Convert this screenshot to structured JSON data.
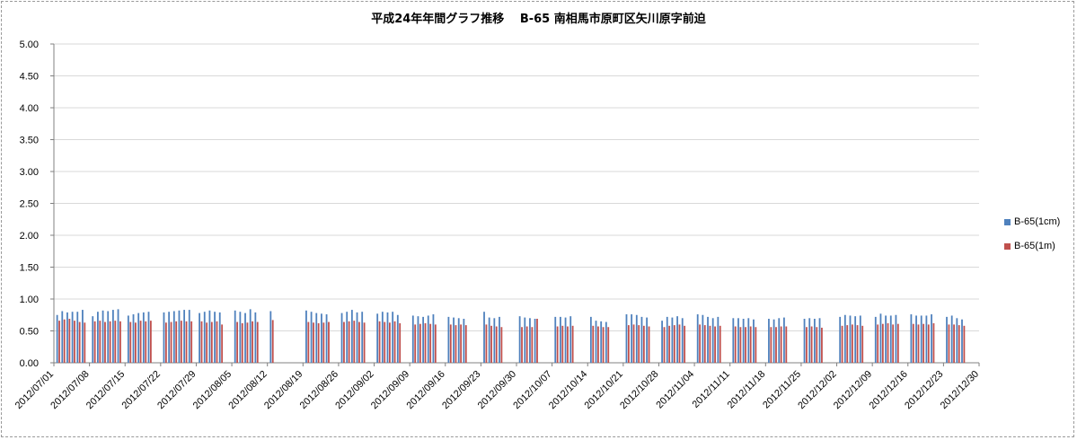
{
  "chart_data": {
    "type": "bar",
    "title": "平成24年年間グラフ推移　 B-65 南相馬市原町区矢川原字前迫",
    "xlabel": "",
    "ylabel": "",
    "ylim": [
      0,
      5
    ],
    "yticks": [
      "0.00",
      "0.50",
      "1.00",
      "1.50",
      "2.00",
      "2.50",
      "3.00",
      "3.50",
      "4.00",
      "4.50",
      "5.00"
    ],
    "xticks": [
      "2012/07/01",
      "2012/07/08",
      "2012/07/15",
      "2012/07/22",
      "2012/07/29",
      "2012/08/05",
      "2012/08/12",
      "2012/08/19",
      "2012/08/26",
      "2012/09/02",
      "2012/09/09",
      "2012/09/16",
      "2012/09/23",
      "2012/09/30",
      "2012/10/07",
      "2012/10/14",
      "2012/10/21",
      "2012/10/28",
      "2012/11/04",
      "2012/11/11",
      "2012/11/18",
      "2012/11/25",
      "2012/12/02",
      "2012/12/09",
      "2012/12/16",
      "2012/12/23",
      "2012/12/30"
    ],
    "legend_position": "right",
    "grid": true,
    "series": [
      {
        "name": "B-65(1cm)",
        "color": "#4f81bd",
        "values": [
          [
            0.75,
            0.81,
            0.79,
            0.8,
            0.8,
            0.83
          ],
          [
            0.73,
            0.8,
            0.82,
            0.81,
            0.83,
            0.84
          ],
          [
            0.74,
            0.76,
            0.78,
            0.79,
            0.8
          ],
          [
            0.79,
            0.8,
            0.81,
            0.82,
            0.83,
            0.83
          ],
          [
            0.78,
            0.8,
            0.82,
            0.8,
            0.79
          ],
          [
            0.82,
            0.8,
            0.78,
            0.84,
            0.79
          ],
          [
            0.81
          ],
          [
            0.82,
            0.8,
            0.78,
            0.77,
            0.76
          ],
          [
            0.78,
            0.8,
            0.83,
            0.79,
            0.8
          ],
          [
            0.77,
            0.8,
            0.79,
            0.8,
            0.75
          ],
          [
            0.74,
            0.73,
            0.72,
            0.74,
            0.76
          ],
          [
            0.72,
            0.71,
            0.7,
            0.69
          ],
          [
            0.8,
            0.71,
            0.7,
            0.72
          ],
          [
            0.73,
            0.71,
            0.7,
            0.69
          ],
          [
            0.72,
            0.72,
            0.71,
            0.73
          ],
          [
            0.72,
            0.66,
            0.65,
            0.64
          ],
          [
            0.76,
            0.76,
            0.75,
            0.72,
            0.71
          ],
          [
            0.66,
            0.72,
            0.71,
            0.73,
            0.7
          ],
          [
            0.76,
            0.75,
            0.72,
            0.7,
            0.72
          ],
          [
            0.7,
            0.7,
            0.69,
            0.7,
            0.68
          ],
          [
            0.69,
            0.68,
            0.7,
            0.71
          ],
          [
            0.69,
            0.7,
            0.69,
            0.7
          ],
          [
            0.72,
            0.75,
            0.74,
            0.73,
            0.74
          ],
          [
            0.72,
            0.77,
            0.74,
            0.74,
            0.75
          ],
          [
            0.76,
            0.74,
            0.74,
            0.74,
            0.76
          ],
          [
            0.72,
            0.74,
            0.7,
            0.68
          ]
        ]
      },
      {
        "name": "B-65(1m)",
        "color": "#c0504d",
        "values": [
          [
            0.66,
            0.68,
            0.69,
            0.66,
            0.64,
            0.63
          ],
          [
            0.65,
            0.66,
            0.64,
            0.65,
            0.66,
            0.65
          ],
          [
            0.64,
            0.63,
            0.66,
            0.65,
            0.66
          ],
          [
            0.63,
            0.64,
            0.65,
            0.66,
            0.65,
            0.65
          ],
          [
            0.65,
            0.63,
            0.64,
            0.65,
            0.6
          ],
          [
            0.64,
            0.62,
            0.63,
            0.65,
            0.64
          ],
          [
            0.67
          ],
          [
            0.64,
            0.63,
            0.62,
            0.63,
            0.64
          ],
          [
            0.64,
            0.65,
            0.66,
            0.64,
            0.63
          ],
          [
            0.65,
            0.64,
            0.63,
            0.65,
            0.62
          ],
          [
            0.6,
            0.61,
            0.62,
            0.61,
            0.6
          ],
          [
            0.6,
            0.59,
            0.6,
            0.59
          ],
          [
            0.6,
            0.58,
            0.57,
            0.56
          ],
          [
            0.56,
            0.57,
            0.56,
            0.69
          ],
          [
            0.57,
            0.58,
            0.57,
            0.58
          ],
          [
            0.58,
            0.57,
            0.56,
            0.56
          ],
          [
            0.59,
            0.6,
            0.59,
            0.58,
            0.57
          ],
          [
            0.56,
            0.58,
            0.59,
            0.6,
            0.58
          ],
          [
            0.6,
            0.59,
            0.58,
            0.57,
            0.58
          ],
          [
            0.57,
            0.56,
            0.56,
            0.57,
            0.56
          ],
          [
            0.56,
            0.56,
            0.57,
            0.57
          ],
          [
            0.56,
            0.57,
            0.56,
            0.55
          ],
          [
            0.58,
            0.59,
            0.6,
            0.59,
            0.58
          ],
          [
            0.6,
            0.61,
            0.62,
            0.6,
            0.61
          ],
          [
            0.61,
            0.6,
            0.61,
            0.6,
            0.62
          ],
          [
            0.6,
            0.6,
            0.59,
            0.58
          ]
        ]
      }
    ]
  }
}
